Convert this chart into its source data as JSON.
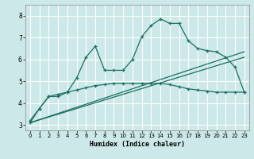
{
  "xlabel": "Humidex (Indice chaleur)",
  "background_color": "#cce8e8",
  "grid_color": "#ffffff",
  "line_color": "#1a7060",
  "xlim": [
    -0.5,
    23.5
  ],
  "ylim": [
    2.75,
    8.5
  ],
  "xticks": [
    0,
    1,
    2,
    3,
    4,
    5,
    6,
    7,
    8,
    9,
    10,
    11,
    12,
    13,
    14,
    15,
    16,
    17,
    18,
    19,
    20,
    21,
    22,
    23
  ],
  "yticks": [
    3,
    4,
    5,
    6,
    7,
    8
  ],
  "curve1_x": [
    0,
    1,
    2,
    3,
    4,
    5,
    6,
    7,
    8,
    9,
    10,
    11,
    12,
    13,
    14,
    15,
    16,
    17,
    18,
    19,
    20,
    21,
    22,
    23
  ],
  "curve1_y": [
    3.2,
    3.75,
    4.3,
    4.3,
    4.5,
    5.15,
    6.1,
    6.6,
    5.5,
    5.5,
    5.5,
    6.0,
    7.05,
    7.55,
    7.85,
    7.65,
    7.65,
    6.85,
    6.5,
    6.4,
    6.35,
    6.1,
    5.65,
    4.5
  ],
  "curve2_x": [
    0,
    1,
    2,
    3,
    4,
    5,
    6,
    7,
    8,
    9,
    10,
    11,
    12,
    13,
    14,
    15,
    16,
    17,
    18,
    19,
    20,
    21,
    22,
    23
  ],
  "curve2_y": [
    3.1,
    3.75,
    4.3,
    4.4,
    4.5,
    4.6,
    4.7,
    4.8,
    4.85,
    4.9,
    4.9,
    4.9,
    4.9,
    4.9,
    4.9,
    4.85,
    4.75,
    4.65,
    4.6,
    4.55,
    4.5,
    4.5,
    4.5,
    4.5
  ],
  "line1_x": [
    0,
    23
  ],
  "line1_y": [
    3.1,
    6.35
  ],
  "line2_x": [
    0,
    23
  ],
  "line2_y": [
    3.1,
    6.1
  ]
}
